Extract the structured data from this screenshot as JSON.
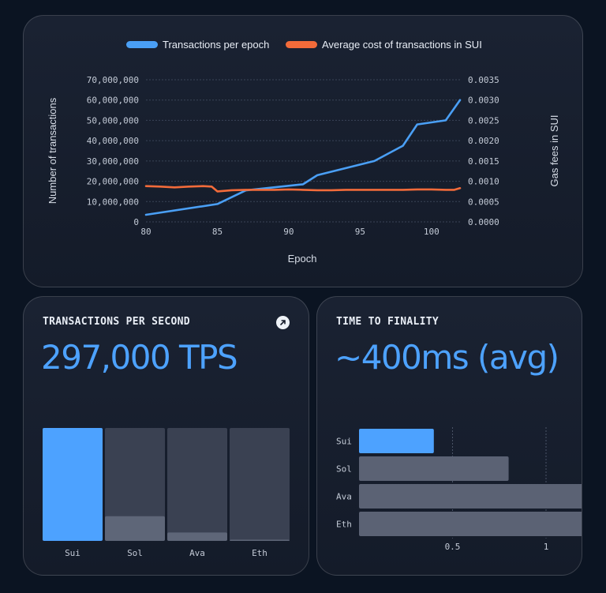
{
  "chart_data": [
    {
      "type": "line",
      "xlabel": "Epoch",
      "ylabel": "Number of transactions",
      "y2label": "Gas fees in SUI",
      "xlim": [
        80,
        102
      ],
      "xticks": [
        "80",
        "85",
        "90",
        "95",
        "100"
      ],
      "ylim": [
        0,
        70000000
      ],
      "yticks": [
        "0",
        "10,000,000",
        "20,000,000",
        "30,000,000",
        "40,000,000",
        "50,000,000",
        "60,000,000",
        "70,000,000"
      ],
      "y2lim": [
        0,
        0.0035
      ],
      "y2ticks": [
        "0.0000",
        "0.0005",
        "0.0010",
        "0.0015",
        "0.0020",
        "0.0025",
        "0.0030",
        "0.0035"
      ],
      "grid": true,
      "legend_position": "top-center",
      "series": [
        {
          "name": "Transactions per epoch",
          "axis": "left",
          "color": "#4a9ff5",
          "x": [
            80,
            85,
            87,
            91,
            92,
            94,
            96,
            98,
            99,
            101,
            102
          ],
          "y": [
            3500000,
            8800000,
            15500000,
            18500000,
            23000000,
            26500000,
            30000000,
            37500000,
            48000000,
            50000000,
            60000000
          ]
        },
        {
          "name": "Average cost of transactions in SUI",
          "axis": "right",
          "color": "#f26b3a",
          "x": [
            80,
            81,
            82,
            83,
            84,
            84.6,
            85,
            86,
            87,
            88,
            89,
            90,
            91,
            92,
            93,
            94,
            95,
            96,
            97,
            98,
            99,
            100,
            101,
            101.6,
            102
          ],
          "y": [
            0.00088,
            0.00087,
            0.00085,
            0.00087,
            0.00088,
            0.00087,
            0.00075,
            0.00078,
            0.00079,
            0.00079,
            0.00079,
            0.0008,
            0.00079,
            0.00078,
            0.00078,
            0.00079,
            0.00079,
            0.00079,
            0.00079,
            0.00079,
            0.0008,
            0.0008,
            0.00079,
            0.00079,
            0.00083
          ]
        }
      ]
    },
    {
      "type": "bar",
      "title": "TRANSACTIONS PER SECOND",
      "headline": "297,000 TPS",
      "categories": [
        "Sui",
        "Sol",
        "Ava",
        "Eth"
      ],
      "values": [
        297000,
        65000,
        22000,
        2500
      ],
      "ylim": [
        0,
        297000
      ],
      "highlight_color": "#4da2ff"
    },
    {
      "type": "bar",
      "orientation": "horizontal",
      "title": "TIME TO FINALITY",
      "headline": "~400ms (avg)",
      "categories": [
        "Sui",
        "Sol",
        "Ava",
        "Eth"
      ],
      "values": [
        0.4,
        0.8,
        1.2,
        1.2
      ],
      "xticks": [
        0.5,
        1
      ],
      "xtick_labels": [
        "0.5",
        "1"
      ],
      "highlight_color": "#4da2ff"
    }
  ]
}
